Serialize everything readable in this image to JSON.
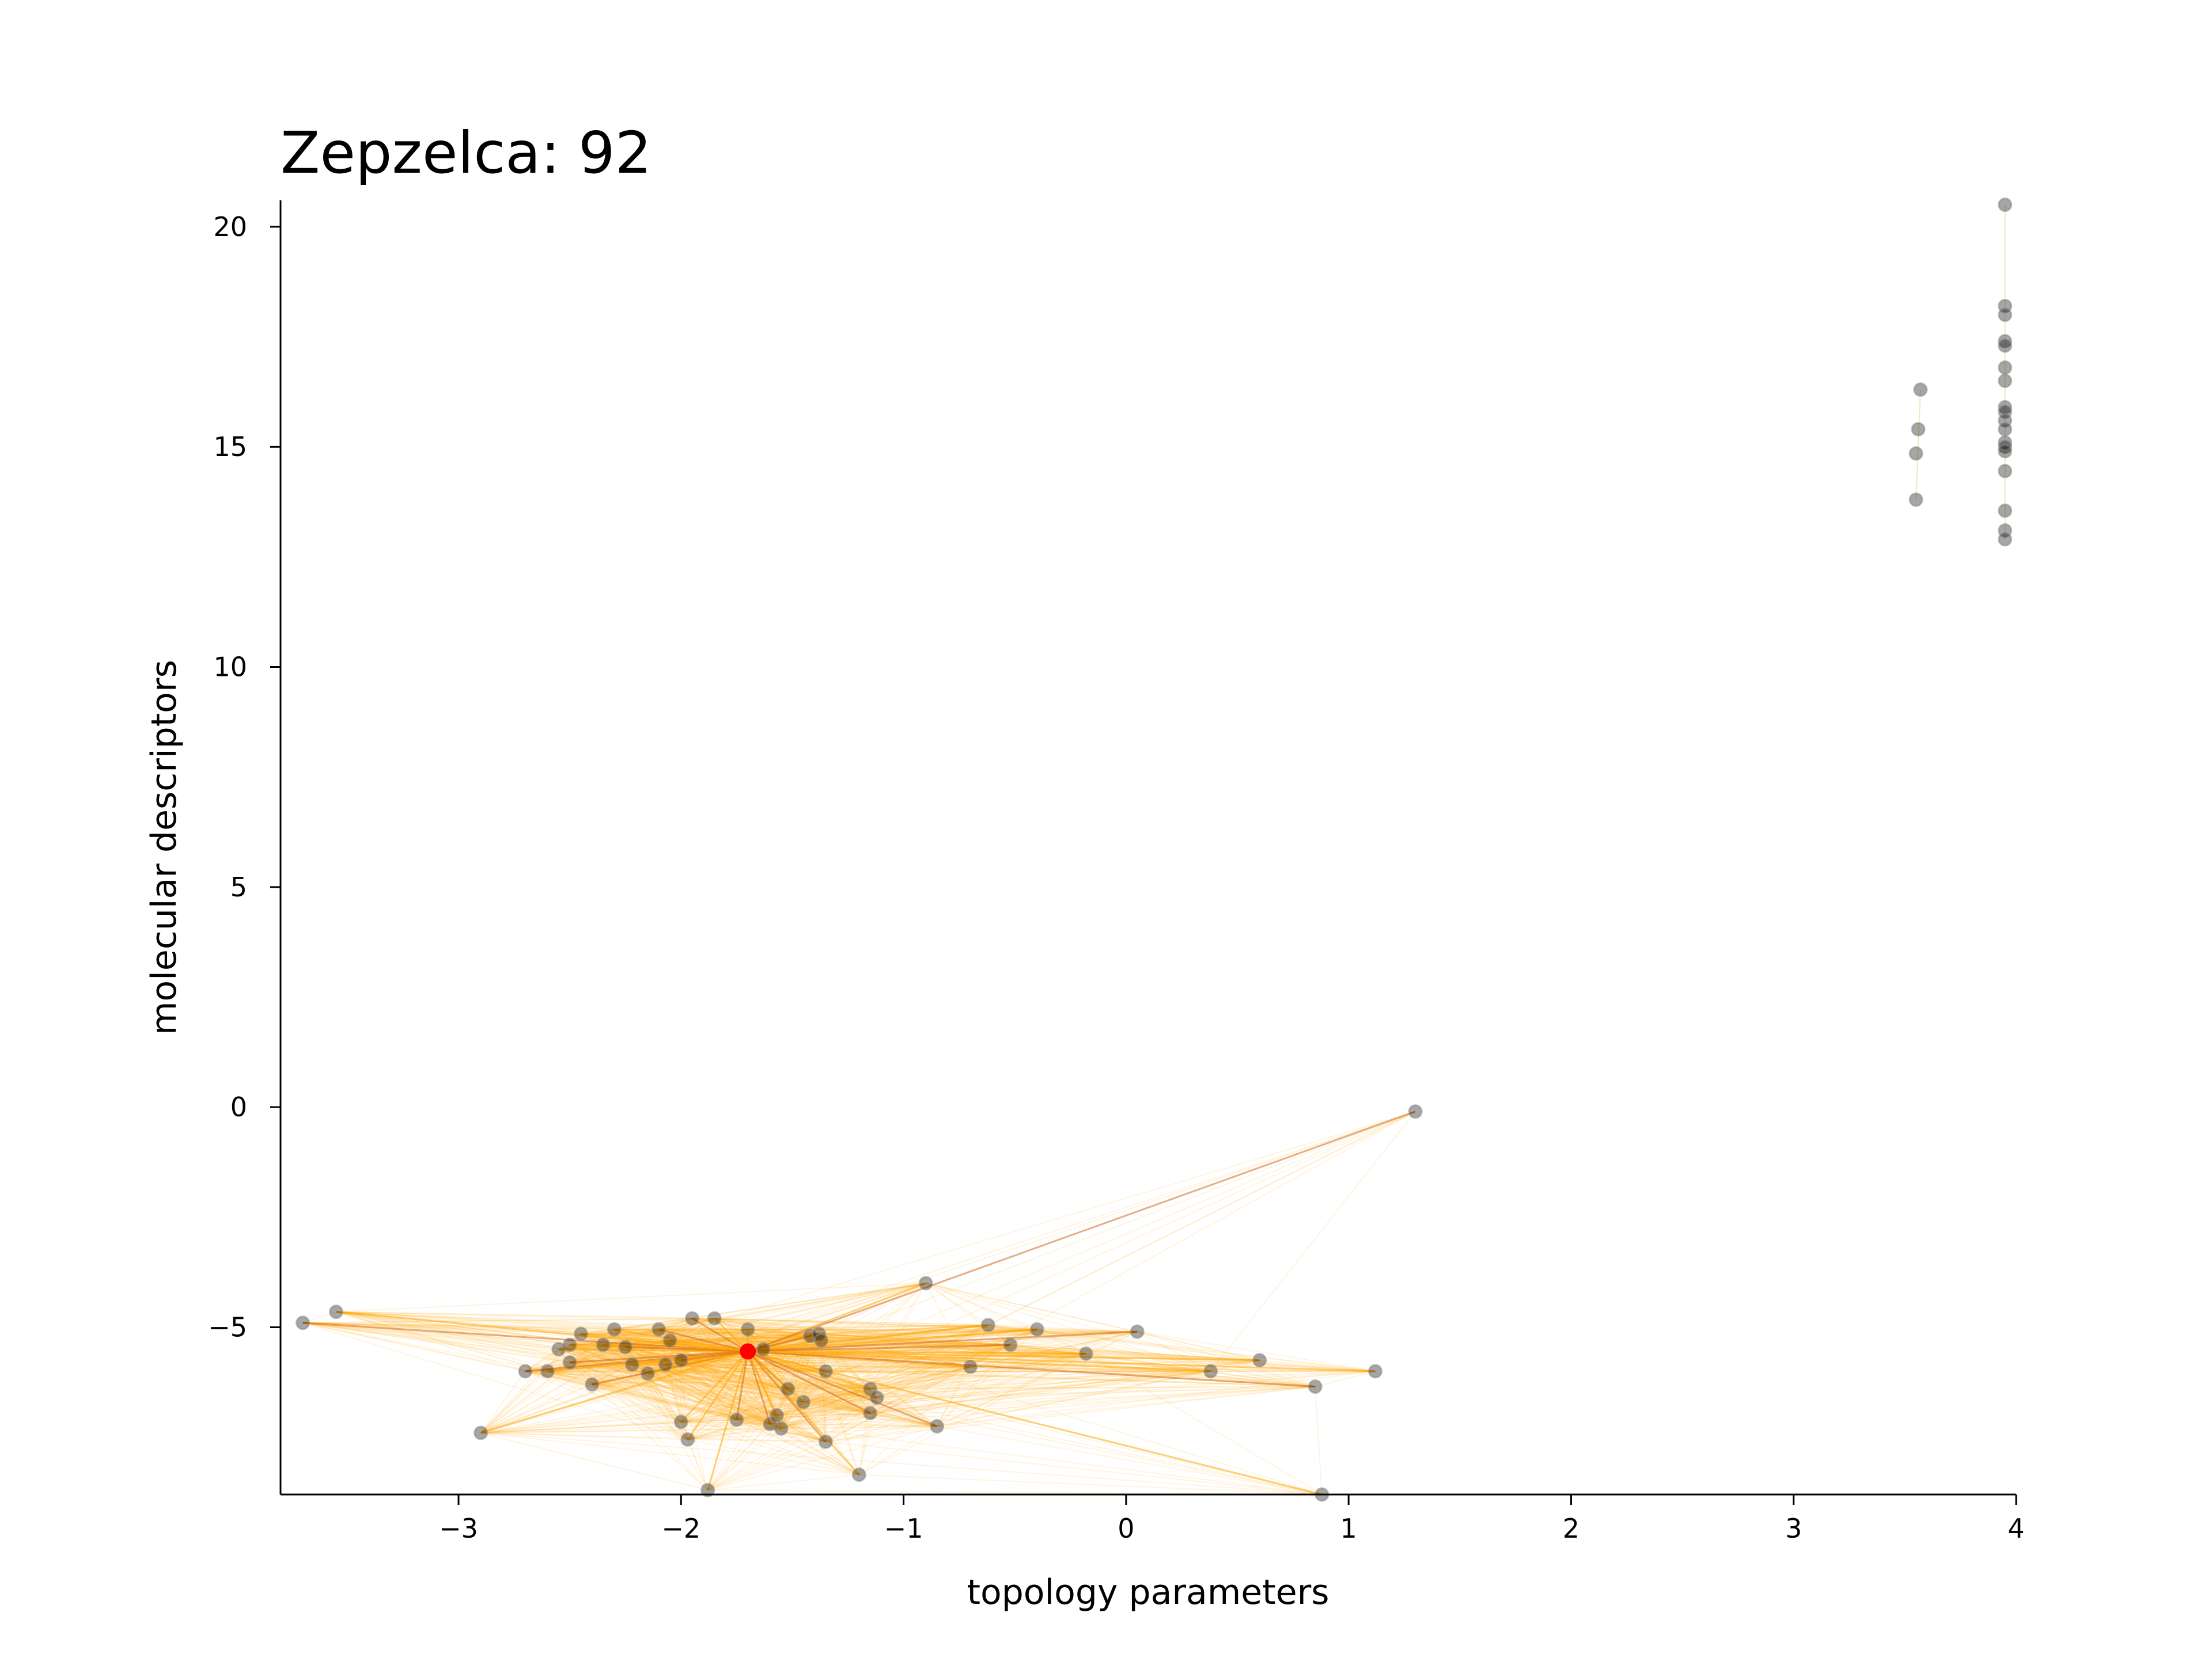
{
  "chart_data": {
    "type": "scatter",
    "title": "Zepzelca: 92",
    "xlabel": "topology parameters",
    "ylabel": "molecular descriptors",
    "xlim": [
      -3.8,
      4.0
    ],
    "ylim": [
      -8.8,
      20.6
    ],
    "xticks": [
      -3,
      -2,
      -1,
      0,
      1,
      2,
      3,
      4
    ],
    "xtick_labels": [
      "−3",
      "−2",
      "−1",
      "0",
      "1",
      "2",
      "3",
      "4"
    ],
    "yticks": [
      -5,
      0,
      5,
      10,
      15,
      20
    ],
    "ytick_labels": [
      "−5",
      "0",
      "5",
      "10",
      "15",
      "20"
    ],
    "grid": false,
    "highlight": {
      "x": -1.7,
      "y": -5.55,
      "color": "#ff0000"
    },
    "colors": {
      "point": "#000000",
      "edge_light": "#ffa500",
      "edge_strong": "#d2691e",
      "highlight": "#ff0000"
    },
    "points": [
      [
        -3.7,
        -4.9
      ],
      [
        -3.55,
        -4.65
      ],
      [
        -2.9,
        -7.4
      ],
      [
        -2.7,
        -6.0
      ],
      [
        -2.6,
        -6.0
      ],
      [
        -2.55,
        -5.5
      ],
      [
        -2.5,
        -5.8
      ],
      [
        -2.5,
        -5.4
      ],
      [
        -2.45,
        -5.15
      ],
      [
        -2.4,
        -6.3
      ],
      [
        -2.35,
        -5.4
      ],
      [
        -2.3,
        -5.05
      ],
      [
        -2.25,
        -5.45
      ],
      [
        -2.22,
        -5.85
      ],
      [
        -2.15,
        -6.05
      ],
      [
        -2.1,
        -5.05
      ],
      [
        -2.07,
        -5.85
      ],
      [
        -2.05,
        -5.3
      ],
      [
        -2.0,
        -5.75
      ],
      [
        -2.0,
        -7.15
      ],
      [
        -1.97,
        -7.55
      ],
      [
        -1.95,
        -4.8
      ],
      [
        -1.88,
        -8.7
      ],
      [
        -1.85,
        -4.8
      ],
      [
        -1.75,
        -7.1
      ],
      [
        -1.7,
        -5.05
      ],
      [
        -1.63,
        -5.5
      ],
      [
        -1.6,
        -7.2
      ],
      [
        -1.57,
        -7.0
      ],
      [
        -1.55,
        -7.3
      ],
      [
        -1.52,
        -6.4
      ],
      [
        -1.45,
        -6.7
      ],
      [
        -1.42,
        -5.2
      ],
      [
        -1.38,
        -5.15
      ],
      [
        -1.37,
        -5.3
      ],
      [
        -1.35,
        -6.0
      ],
      [
        -1.35,
        -7.6
      ],
      [
        -1.2,
        -8.35
      ],
      [
        -1.15,
        -6.4
      ],
      [
        -1.15,
        -6.95
      ],
      [
        -1.12,
        -6.6
      ],
      [
        -0.9,
        -4.0
      ],
      [
        -0.85,
        -7.25
      ],
      [
        -0.7,
        -5.9
      ],
      [
        -0.62,
        -4.95
      ],
      [
        -0.52,
        -5.4
      ],
      [
        -0.4,
        -5.05
      ],
      [
        -0.18,
        -5.6
      ],
      [
        0.05,
        -5.1
      ],
      [
        0.38,
        -6.0
      ],
      [
        0.6,
        -5.75
      ],
      [
        0.85,
        -6.35
      ],
      [
        0.88,
        -8.8
      ],
      [
        1.12,
        -6.0
      ],
      [
        1.3,
        -0.1
      ],
      [
        3.55,
        13.8
      ],
      [
        3.55,
        14.85
      ],
      [
        3.56,
        15.4
      ],
      [
        3.57,
        16.3
      ],
      [
        3.95,
        20.5
      ],
      [
        3.95,
        18.2
      ],
      [
        3.95,
        18.0
      ],
      [
        3.95,
        17.4
      ],
      [
        3.95,
        17.3
      ],
      [
        3.95,
        16.8
      ],
      [
        3.95,
        16.5
      ],
      [
        3.95,
        15.9
      ],
      [
        3.95,
        15.8
      ],
      [
        3.95,
        15.6
      ],
      [
        3.95,
        15.4
      ],
      [
        3.95,
        15.1
      ],
      [
        3.95,
        15.0
      ],
      [
        3.95,
        14.9
      ],
      [
        3.95,
        14.45
      ],
      [
        3.95,
        13.55
      ],
      [
        3.95,
        13.1
      ],
      [
        3.95,
        12.9
      ]
    ]
  }
}
